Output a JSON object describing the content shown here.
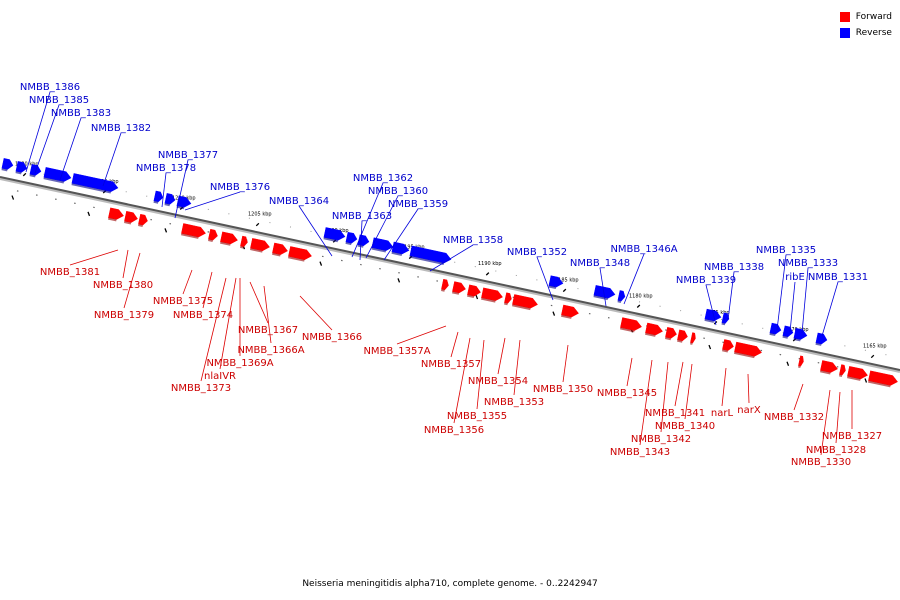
{
  "legend": [
    {
      "label": "Forward",
      "color": "#ff0000"
    },
    {
      "label": "Reverse",
      "color": "#0000ff"
    }
  ],
  "caption": "Neisseria meningitidis alpha710, complete genome. - 0..2242947",
  "ticks": [
    {
      "label": "1220 kbp",
      "kbp": 1220
    },
    {
      "label": "1215 kbp",
      "kbp": 1215
    },
    {
      "label": "1210 kbp",
      "kbp": 1210
    },
    {
      "label": "1205 kbp",
      "kbp": 1205
    },
    {
      "label": "1200 kbp",
      "kbp": 1200
    },
    {
      "label": "1195 kbp",
      "kbp": 1195
    },
    {
      "label": "1190 kbp",
      "kbp": 1190
    },
    {
      "label": "1185 kbp",
      "kbp": 1185
    },
    {
      "label": "1180 kbp",
      "kbp": 1180
    },
    {
      "label": "1175 kbp",
      "kbp": 1175
    },
    {
      "label": "1170 kbp",
      "kbp": 1170
    },
    {
      "label": "1165 kbp",
      "kbp": 1165
    }
  ],
  "genes": [
    {
      "name": "NMBB_1386",
      "strand": "reverse"
    },
    {
      "name": "NMBB_1385",
      "strand": "reverse"
    },
    {
      "name": "NMBB_1383",
      "strand": "reverse"
    },
    {
      "name": "NMBB_1382",
      "strand": "reverse"
    },
    {
      "name": "NMBB_1377",
      "strand": "reverse"
    },
    {
      "name": "NMBB_1378",
      "strand": "reverse"
    },
    {
      "name": "NMBB_1376",
      "strand": "reverse"
    },
    {
      "name": "NMBB_1364",
      "strand": "reverse"
    },
    {
      "name": "NMBB_1362",
      "strand": "reverse"
    },
    {
      "name": "NMBB_1360",
      "strand": "reverse"
    },
    {
      "name": "NMBB_1363",
      "strand": "reverse"
    },
    {
      "name": "NMBB_1359",
      "strand": "reverse"
    },
    {
      "name": "NMBB_1358",
      "strand": "reverse"
    },
    {
      "name": "NMBB_1352",
      "strand": "reverse"
    },
    {
      "name": "NMBB_1346A",
      "strand": "reverse"
    },
    {
      "name": "NMBB_1348",
      "strand": "reverse"
    },
    {
      "name": "NMBB_1338",
      "strand": "reverse"
    },
    {
      "name": "NMBB_1339",
      "strand": "reverse"
    },
    {
      "name": "NMBB_1335",
      "strand": "reverse"
    },
    {
      "name": "NMBB_1333",
      "strand": "reverse"
    },
    {
      "name": "ribE",
      "strand": "reverse"
    },
    {
      "name": "NMBB_1331",
      "strand": "reverse"
    },
    {
      "name": "NMBB_1381",
      "strand": "forward"
    },
    {
      "name": "NMBB_1380",
      "strand": "forward"
    },
    {
      "name": "NMBB_1379",
      "strand": "forward"
    },
    {
      "name": "NMBB_1375",
      "strand": "forward"
    },
    {
      "name": "NMBB_1374",
      "strand": "forward"
    },
    {
      "name": "NMBB_1367",
      "strand": "forward"
    },
    {
      "name": "NMBB_1366A",
      "strand": "forward"
    },
    {
      "name": "NMBB_1366",
      "strand": "forward"
    },
    {
      "name": "NMBB_1369A",
      "strand": "forward"
    },
    {
      "name": "nlaIVR",
      "strand": "forward"
    },
    {
      "name": "NMBB_1373",
      "strand": "forward"
    },
    {
      "name": "NMBB_1357A",
      "strand": "forward"
    },
    {
      "name": "NMBB_1357",
      "strand": "forward"
    },
    {
      "name": "NMBB_1354",
      "strand": "forward"
    },
    {
      "name": "NMBB_1353",
      "strand": "forward"
    },
    {
      "name": "NMBB_1355",
      "strand": "forward"
    },
    {
      "name": "NMBB_1356",
      "strand": "forward"
    },
    {
      "name": "NMBB_1350",
      "strand": "forward"
    },
    {
      "name": "NMBB_1345",
      "strand": "forward"
    },
    {
      "name": "NMBB_1341",
      "strand": "forward"
    },
    {
      "name": "NMBB_1340",
      "strand": "forward"
    },
    {
      "name": "NMBB_1342",
      "strand": "forward"
    },
    {
      "name": "NMBB_1343",
      "strand": "forward"
    },
    {
      "name": "narL",
      "strand": "forward"
    },
    {
      "name": "narX",
      "strand": "forward"
    },
    {
      "name": "NMBB_1332",
      "strand": "forward"
    },
    {
      "name": "NMBB_1327",
      "strand": "forward"
    },
    {
      "name": "NMBB_1328",
      "strand": "forward"
    },
    {
      "name": "NMBB_1330",
      "strand": "forward"
    }
  ]
}
